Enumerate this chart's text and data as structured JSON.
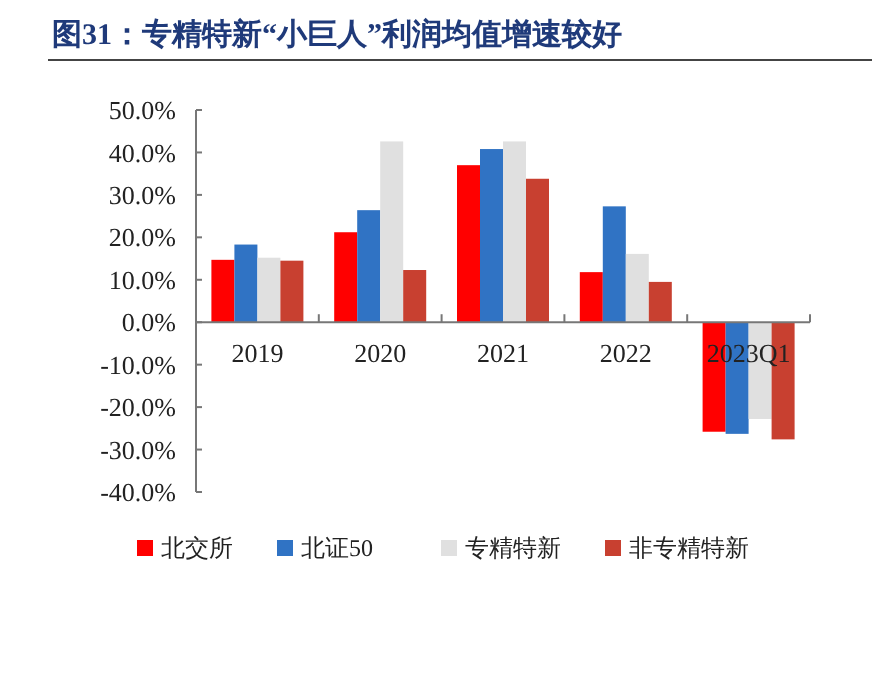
{
  "chart_data": {
    "type": "bar",
    "title": "图31：专精特新“小巨人”利润均值增速较好",
    "categories": [
      "2019",
      "2020",
      "2021",
      "2022",
      "2023Q1"
    ],
    "series": [
      {
        "name": "北交所",
        "color": "#ff0000",
        "values": [
          14.7,
          21.2,
          37.0,
          11.8,
          -25.8
        ]
      },
      {
        "name": "北证50",
        "color": "#3073c4",
        "values": [
          18.3,
          26.4,
          40.8,
          27.3,
          -26.3
        ]
      },
      {
        "name": "专精特新",
        "color": "#e0e0e0",
        "values": [
          15.2,
          42.6,
          42.6,
          16.1,
          -22.8
        ]
      },
      {
        "name": "非专精特新",
        "color": "#c84030",
        "values": [
          14.5,
          12.3,
          33.8,
          9.5,
          -27.6
        ]
      }
    ],
    "ylim": [
      -40,
      50
    ],
    "yticks": [
      {
        "value": -40,
        "label": "-40.0%"
      },
      {
        "value": -30,
        "label": "-30.0%"
      },
      {
        "value": -20,
        "label": "-20.0%"
      },
      {
        "value": -10,
        "label": "-10.0%"
      },
      {
        "value": 0,
        "label": "0.0%"
      },
      {
        "value": 10,
        "label": "10.0%"
      },
      {
        "value": 20,
        "label": "20.0%"
      },
      {
        "value": 30,
        "label": "30.0%"
      },
      {
        "value": 40,
        "label": "40.0%"
      },
      {
        "value": 50,
        "label": "50.0%"
      }
    ],
    "grid": false,
    "legend": "bottom"
  }
}
